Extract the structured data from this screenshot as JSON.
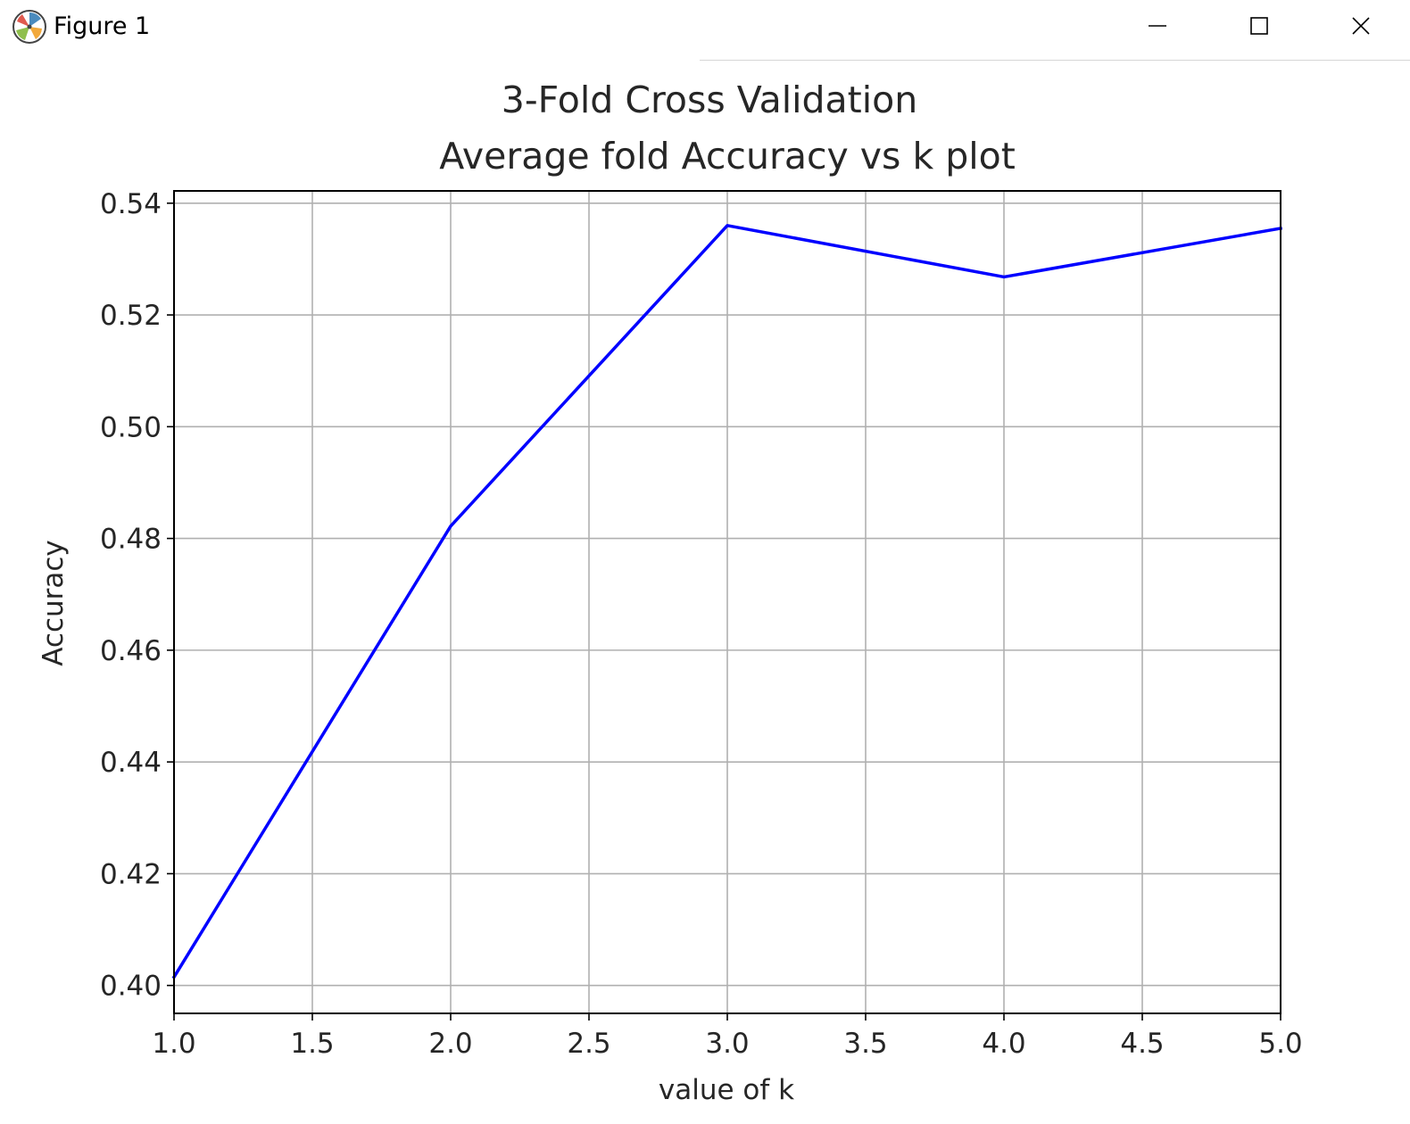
{
  "window": {
    "title": "Figure 1",
    "icon": "matplotlib-icon",
    "controls": [
      {
        "name": "minimize",
        "icon": "minimize-icon"
      },
      {
        "name": "maximize",
        "icon": "maximize-icon"
      },
      {
        "name": "close",
        "icon": "close-icon"
      }
    ]
  },
  "chart_data": {
    "type": "line",
    "title": "3-Fold Cross Validation",
    "subtitle": "Average fold Accuracy vs k plot",
    "xlabel": "value of k",
    "ylabel": "Accuracy",
    "x": [
      1,
      2,
      3,
      4,
      5
    ],
    "series": [
      {
        "values": [
          0.4015,
          0.4822,
          0.536,
          0.5268,
          0.5355
        ],
        "color": "#0000ff"
      }
    ],
    "xlim": [
      1.0,
      5.0
    ],
    "ylim": [
      0.395,
      0.5422
    ],
    "xticks": [
      "1.0",
      "1.5",
      "2.0",
      "2.5",
      "3.0",
      "3.5",
      "4.0",
      "4.5",
      "5.0"
    ],
    "yticks": [
      "0.40",
      "0.42",
      "0.44",
      "0.46",
      "0.48",
      "0.50",
      "0.52",
      "0.54"
    ],
    "grid": true,
    "legend": "none"
  }
}
